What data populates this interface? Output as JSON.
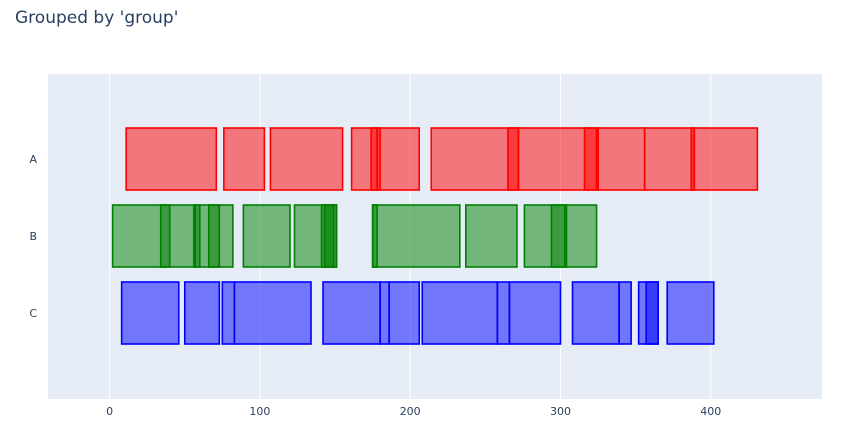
{
  "chart_data": {
    "type": "bar",
    "title": "Grouped by 'group'",
    "xlabel": "",
    "ylabel": "",
    "xlim": [
      -41,
      474
    ],
    "grid": true,
    "x_ticks": [
      "0",
      "100",
      "200",
      "300",
      "400"
    ],
    "x_tick_values": [
      0,
      100,
      200,
      300,
      400
    ],
    "categories": [
      "A",
      "B",
      "C"
    ],
    "series": [
      {
        "category": "A",
        "color": "#ff0000",
        "fill": "rgba(255,0,0,0.5)",
        "intervals": [
          [
            11,
            71
          ],
          [
            76,
            103
          ],
          [
            107,
            155
          ],
          [
            161,
            178
          ],
          [
            174,
            180
          ],
          [
            178,
            206
          ],
          [
            214,
            272
          ],
          [
            265,
            272
          ],
          [
            272,
            324
          ],
          [
            316,
            325
          ],
          [
            325,
            356
          ],
          [
            356,
            389
          ],
          [
            387,
            389
          ],
          [
            389,
            431
          ]
        ]
      },
      {
        "category": "B",
        "color": "#008000",
        "fill": "rgba(0,128,0,0.5)",
        "intervals": [
          [
            2,
            57
          ],
          [
            34,
            40
          ],
          [
            57,
            82
          ],
          [
            56,
            60
          ],
          [
            66,
            73
          ],
          [
            89,
            120
          ],
          [
            123,
            151
          ],
          [
            141,
            149
          ],
          [
            143,
            151
          ],
          [
            175,
            233
          ],
          [
            175,
            178
          ],
          [
            237,
            271
          ],
          [
            276,
            303
          ],
          [
            294,
            304
          ],
          [
            303,
            324
          ]
        ]
      },
      {
        "category": "C",
        "color": "#0000ff",
        "fill": "rgba(0,0,255,0.5)",
        "intervals": [
          [
            8,
            46
          ],
          [
            50,
            73
          ],
          [
            75,
            83
          ],
          [
            83,
            134
          ],
          [
            142,
            180
          ],
          [
            180,
            186
          ],
          [
            186,
            206
          ],
          [
            208,
            258
          ],
          [
            258,
            266
          ],
          [
            266,
            300
          ],
          [
            308,
            339
          ],
          [
            339,
            347
          ],
          [
            352,
            365
          ],
          [
            357,
            365
          ],
          [
            371,
            402
          ]
        ]
      }
    ]
  }
}
